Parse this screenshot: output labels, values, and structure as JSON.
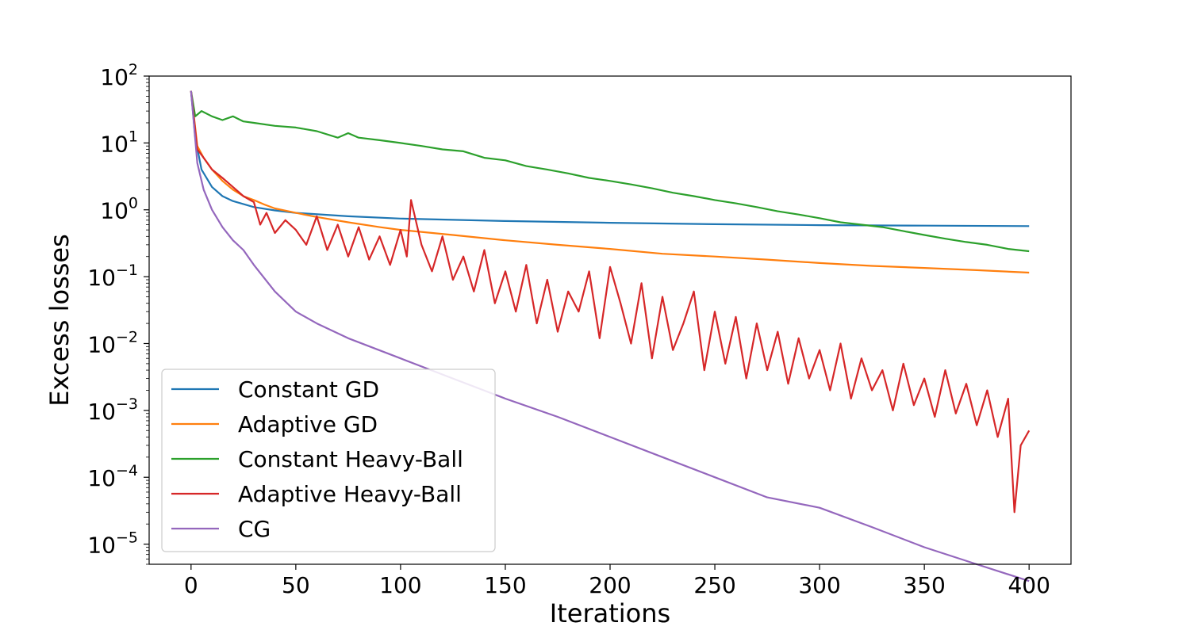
{
  "chart_data": {
    "type": "line",
    "title": "",
    "xlabel": "Iterations",
    "ylabel": "Excess losses",
    "y_scale": "log",
    "xlim": [
      -20,
      420
    ],
    "ylim": [
      5e-06,
      100
    ],
    "x_ticks": [
      0,
      50,
      100,
      150,
      200,
      250,
      300,
      350,
      400
    ],
    "y_ticks": [
      {
        "value": 100,
        "base": "10",
        "exp": "2"
      },
      {
        "value": 10,
        "base": "10",
        "exp": "1"
      },
      {
        "value": 1,
        "base": "10",
        "exp": "0"
      },
      {
        "value": 0.1,
        "base": "10",
        "exp": "−1"
      },
      {
        "value": 0.01,
        "base": "10",
        "exp": "−2"
      },
      {
        "value": 0.001,
        "base": "10",
        "exp": "−3"
      },
      {
        "value": 0.0001,
        "base": "10",
        "exp": "−4"
      },
      {
        "value": 1e-05,
        "base": "10",
        "exp": "−5"
      }
    ],
    "grid": false,
    "legend_position": "lower-left",
    "series": [
      {
        "name": "Constant GD",
        "color": "#1f77b4",
        "x": [
          0,
          2,
          5,
          10,
          15,
          20,
          30,
          40,
          50,
          75,
          100,
          150,
          200,
          250,
          300,
          350,
          400
        ],
        "y": [
          60,
          12,
          4,
          2.2,
          1.6,
          1.35,
          1.1,
          0.98,
          0.9,
          0.8,
          0.74,
          0.68,
          0.64,
          0.61,
          0.59,
          0.58,
          0.57
        ]
      },
      {
        "name": "Adaptive GD",
        "color": "#ff7f0e",
        "x": [
          0,
          3,
          6,
          10,
          15,
          20,
          25,
          30,
          35,
          40,
          50,
          60,
          75,
          90,
          100,
          125,
          150,
          175,
          200,
          225,
          250,
          275,
          300,
          325,
          350,
          375,
          400
        ],
        "y": [
          60,
          9,
          6,
          4,
          2.7,
          2,
          1.6,
          1.4,
          1.2,
          1.05,
          0.9,
          0.78,
          0.65,
          0.55,
          0.5,
          0.42,
          0.35,
          0.3,
          0.26,
          0.22,
          0.2,
          0.18,
          0.16,
          0.145,
          0.135,
          0.125,
          0.115
        ]
      },
      {
        "name": "Constant Heavy-Ball",
        "color": "#2ca02c",
        "x": [
          0,
          2,
          5,
          10,
          15,
          20,
          25,
          30,
          40,
          50,
          60,
          70,
          75,
          80,
          90,
          100,
          110,
          120,
          130,
          140,
          150,
          160,
          170,
          180,
          190,
          200,
          210,
          220,
          230,
          240,
          250,
          260,
          270,
          280,
          290,
          300,
          310,
          320,
          330,
          340,
          350,
          360,
          370,
          380,
          390,
          400
        ],
        "y": [
          60,
          25,
          30,
          25,
          22,
          25,
          21,
          20,
          18,
          17,
          15,
          12,
          14,
          12,
          11,
          10,
          9,
          8,
          7.5,
          6,
          5.5,
          4.5,
          4,
          3.5,
          3,
          2.7,
          2.4,
          2.1,
          1.8,
          1.6,
          1.4,
          1.25,
          1.1,
          0.95,
          0.85,
          0.75,
          0.65,
          0.6,
          0.55,
          0.48,
          0.42,
          0.37,
          0.33,
          0.3,
          0.26,
          0.24
        ]
      },
      {
        "name": "Adaptive Heavy-Ball",
        "color": "#d62728",
        "x": [
          0,
          3,
          6,
          10,
          15,
          20,
          25,
          30,
          33,
          36,
          40,
          45,
          50,
          55,
          60,
          65,
          70,
          75,
          80,
          85,
          90,
          95,
          100,
          103,
          105,
          110,
          115,
          120,
          125,
          130,
          135,
          140,
          145,
          150,
          155,
          160,
          165,
          170,
          175,
          180,
          185,
          190,
          195,
          200,
          205,
          210,
          215,
          220,
          225,
          230,
          235,
          240,
          245,
          250,
          255,
          260,
          265,
          270,
          275,
          280,
          285,
          290,
          295,
          300,
          305,
          310,
          315,
          320,
          325,
          330,
          335,
          340,
          345,
          350,
          355,
          360,
          365,
          370,
          375,
          380,
          385,
          390,
          393,
          396,
          400
        ],
        "y": [
          60,
          8,
          6,
          4,
          3,
          2.2,
          1.6,
          1.3,
          0.6,
          0.9,
          0.45,
          0.7,
          0.5,
          0.3,
          0.8,
          0.25,
          0.6,
          0.2,
          0.55,
          0.18,
          0.4,
          0.15,
          0.5,
          0.2,
          1.4,
          0.3,
          0.12,
          0.4,
          0.09,
          0.2,
          0.06,
          0.25,
          0.04,
          0.12,
          0.03,
          0.15,
          0.02,
          0.09,
          0.015,
          0.06,
          0.03,
          0.12,
          0.012,
          0.14,
          0.04,
          0.01,
          0.08,
          0.006,
          0.05,
          0.008,
          0.02,
          0.06,
          0.004,
          0.03,
          0.005,
          0.025,
          0.003,
          0.02,
          0.004,
          0.015,
          0.0025,
          0.012,
          0.003,
          0.008,
          0.002,
          0.01,
          0.0015,
          0.006,
          0.002,
          0.004,
          0.001,
          0.005,
          0.0012,
          0.003,
          0.0008,
          0.004,
          0.0009,
          0.0025,
          0.0006,
          0.002,
          0.0004,
          0.0015,
          3e-05,
          0.0003,
          0.0005
        ]
      },
      {
        "name": "CG",
        "color": "#9467bd",
        "x": [
          0,
          3,
          6,
          10,
          15,
          20,
          25,
          30,
          40,
          50,
          60,
          75,
          100,
          125,
          150,
          175,
          200,
          225,
          250,
          275,
          300,
          325,
          350,
          375,
          400
        ],
        "y": [
          60,
          5,
          2,
          1,
          0.55,
          0.35,
          0.25,
          0.15,
          0.06,
          0.03,
          0.02,
          0.012,
          0.006,
          0.003,
          0.0015,
          0.0008,
          0.0004,
          0.0002,
          0.0001,
          5e-05,
          3.5e-05,
          1.8e-05,
          9e-06,
          5e-06,
          2.8e-06
        ]
      }
    ]
  }
}
